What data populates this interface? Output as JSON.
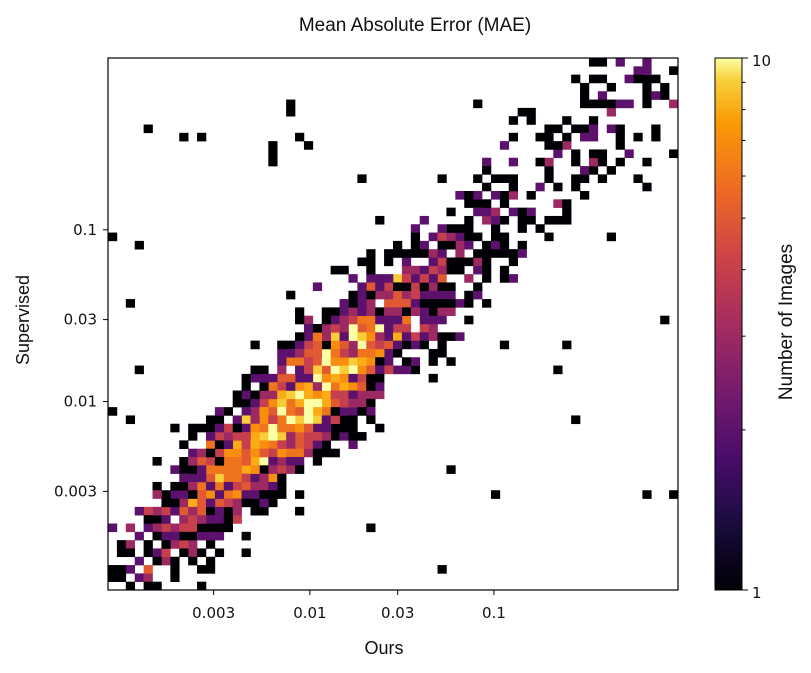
{
  "chart_data": {
    "type": "heatmap",
    "title": "Mean Absolute Error (MAE)",
    "xlabel": "Ours",
    "ylabel": "Supervised",
    "x_scale": "log",
    "y_scale": "log",
    "xlim": [
      0.0008,
      1.0
    ],
    "ylim": [
      0.0008,
      1.0
    ],
    "x_ticks": [
      {
        "value": 0.003,
        "label": "0.003"
      },
      {
        "value": 0.01,
        "label": "0.01"
      },
      {
        "value": 0.03,
        "label": "0.03"
      },
      {
        "value": 0.1,
        "label": "0.1"
      }
    ],
    "y_ticks": [
      {
        "value": 0.003,
        "label": "0.003"
      },
      {
        "value": 0.01,
        "label": "0.01"
      },
      {
        "value": 0.03,
        "label": "0.03"
      },
      {
        "value": 0.1,
        "label": "0.1"
      }
    ],
    "bins_per_axis": 64,
    "colorbar": {
      "label": "Number of Images",
      "scale": "log",
      "min": 1,
      "max": 10,
      "min_label": "1",
      "max_label": "10",
      "colormap": "inferno"
    },
    "distribution_note": "points concentrated along diagonal; peak counts near x≈0.004–0.015, y≈0.005–0.02"
  }
}
